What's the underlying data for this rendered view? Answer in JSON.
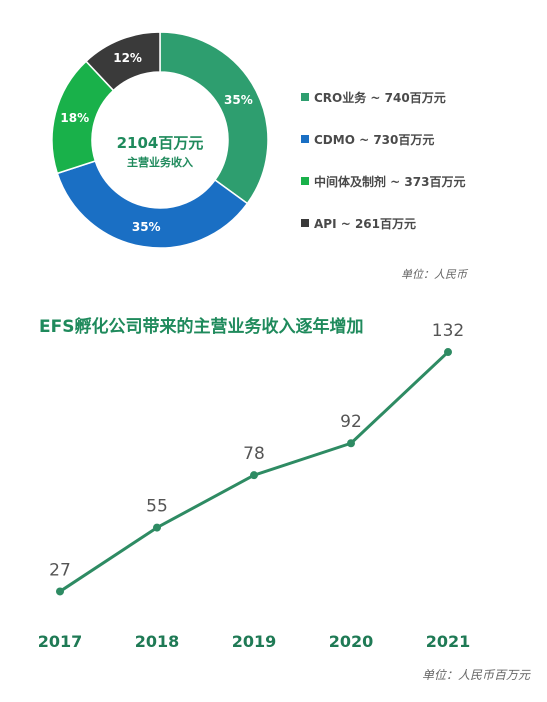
{
  "chart_data": [
    {
      "type": "pie",
      "categories": [
        "CRO业务",
        "CDMO",
        "中间体及制剂",
        "API"
      ],
      "values": [
        35,
        35,
        18,
        12
      ],
      "slice_labels": [
        "35%",
        "35%",
        "18%",
        "12%"
      ],
      "colors": [
        "#2e9e6f",
        "#1a6fc4",
        "#19b14a",
        "#3a3a3a"
      ],
      "center_value": "2104百万元",
      "center_label": "主营业务收入",
      "legend": [
        {
          "text": "CRO业务 ~ 740百万元",
          "color": "#2e9e6f"
        },
        {
          "text": "CDMO ~ 730百万元",
          "color": "#1a6fc4"
        },
        {
          "text": "中间体及制剂 ~ 373百万元",
          "color": "#19b14a"
        },
        {
          "text": "API ~ 261百万元",
          "color": "#3a3a3a"
        }
      ],
      "legend_position": "right",
      "unit": "单位：人民币"
    },
    {
      "type": "line",
      "title": "EFS孵化公司带来的主营业务收入逐年增加",
      "x": [
        "2017",
        "2018",
        "2019",
        "2020",
        "2021"
      ],
      "series": [
        {
          "values": [
            27,
            55,
            78,
            92,
            132
          ],
          "color": "#2e8b63"
        }
      ],
      "data_labels": [
        "27",
        "55",
        "78",
        "92",
        "132"
      ],
      "ylim": [
        0,
        150
      ],
      "grid": false,
      "unit": "单位：人民币百万元"
    }
  ]
}
